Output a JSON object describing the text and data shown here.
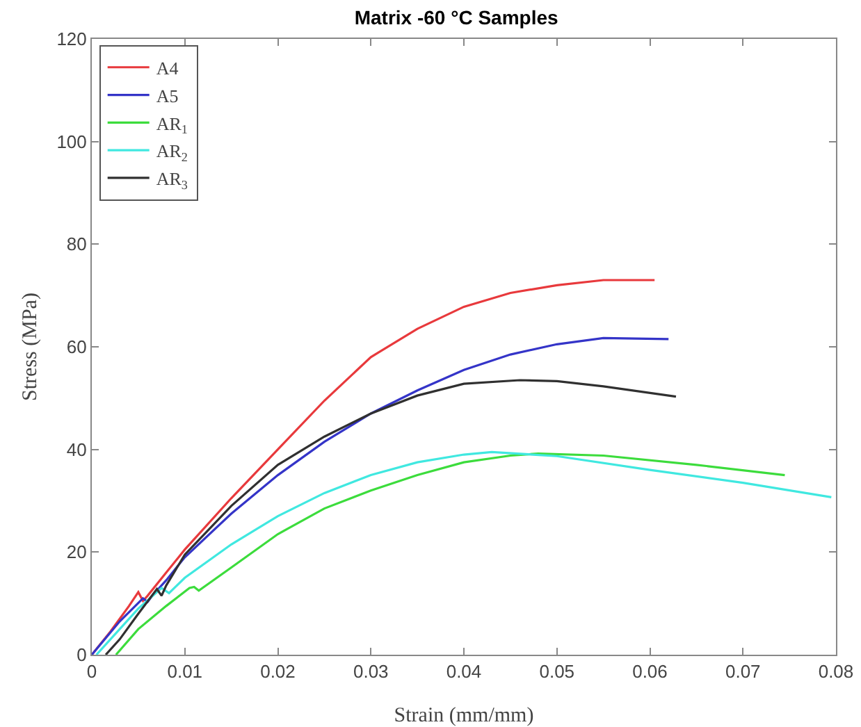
{
  "chart_data": {
    "type": "line",
    "title": "Matrix -60 °C Samples",
    "xlabel": "Strain (mm/mm)",
    "ylabel": "Stress (MPa)",
    "xlim": [
      0,
      0.08
    ],
    "ylim": [
      0,
      120
    ],
    "xticks": [
      0,
      0.01,
      0.02,
      0.03,
      0.04,
      0.05,
      0.06,
      0.07,
      0.08
    ],
    "yticks": [
      0,
      20,
      40,
      60,
      80,
      100,
      120
    ],
    "grid": false,
    "legend": "top left",
    "marker": "none",
    "line_style": "solid",
    "series": [
      {
        "name": "A4",
        "color": "#e8393c",
        "x": [
          0,
          0.002,
          0.004,
          0.005,
          0.0055,
          0.006,
          0.008,
          0.01,
          0.015,
          0.02,
          0.025,
          0.03,
          0.035,
          0.04,
          0.045,
          0.05,
          0.055,
          0.0605
        ],
        "values": [
          0,
          4.5,
          9.5,
          12.2,
          10.5,
          11.5,
          16,
          20.5,
          30.5,
          40,
          49.5,
          58,
          63.5,
          67.8,
          70.5,
          72,
          73,
          73
        ]
      },
      {
        "name": "A5",
        "color": "#3434c8",
        "x": [
          0,
          0.003,
          0.0055,
          0.006,
          0.0065,
          0.008,
          0.01,
          0.015,
          0.02,
          0.025,
          0.03,
          0.035,
          0.04,
          0.045,
          0.05,
          0.055,
          0.062
        ],
        "values": [
          0,
          6.5,
          11,
          10.3,
          11.5,
          14.5,
          19,
          27.5,
          35,
          41.5,
          47,
          51.5,
          55.5,
          58.5,
          60.5,
          61.7,
          61.5
        ]
      },
      {
        "name": "AR$_{1}$",
        "color": "#3cdc3c",
        "x": [
          0.0026,
          0.005,
          0.008,
          0.0105,
          0.011,
          0.0115,
          0.015,
          0.02,
          0.025,
          0.03,
          0.035,
          0.04,
          0.045,
          0.048,
          0.055,
          0.065,
          0.0745
        ],
        "values": [
          0,
          5,
          9.5,
          13,
          13.2,
          12.5,
          17,
          23.5,
          28.5,
          32,
          35,
          37.5,
          38.8,
          39.2,
          38.8,
          37,
          35
        ]
      },
      {
        "name": "AR$_{2}$",
        "color": "#40e8e0",
        "x": [
          0.0005,
          0.003,
          0.005,
          0.0075,
          0.0083,
          0.01,
          0.015,
          0.02,
          0.025,
          0.03,
          0.035,
          0.04,
          0.043,
          0.05,
          0.06,
          0.07,
          0.0795
        ],
        "values": [
          0,
          5,
          9,
          13,
          12,
          15,
          21.5,
          27,
          31.5,
          35,
          37.5,
          39,
          39.5,
          38.7,
          36,
          33.5,
          30.7
        ]
      },
      {
        "name": "AR$_{3}$",
        "color": "#303030",
        "x": [
          0.0015,
          0.003,
          0.005,
          0.007,
          0.0075,
          0.008,
          0.01,
          0.015,
          0.02,
          0.025,
          0.03,
          0.035,
          0.04,
          0.046,
          0.05,
          0.055,
          0.0628
        ],
        "values": [
          0,
          3,
          8,
          12.8,
          11.5,
          13.5,
          19.5,
          29,
          37,
          42.5,
          47,
          50.5,
          52.8,
          53.5,
          53.3,
          52.3,
          50.3
        ]
      }
    ]
  }
}
